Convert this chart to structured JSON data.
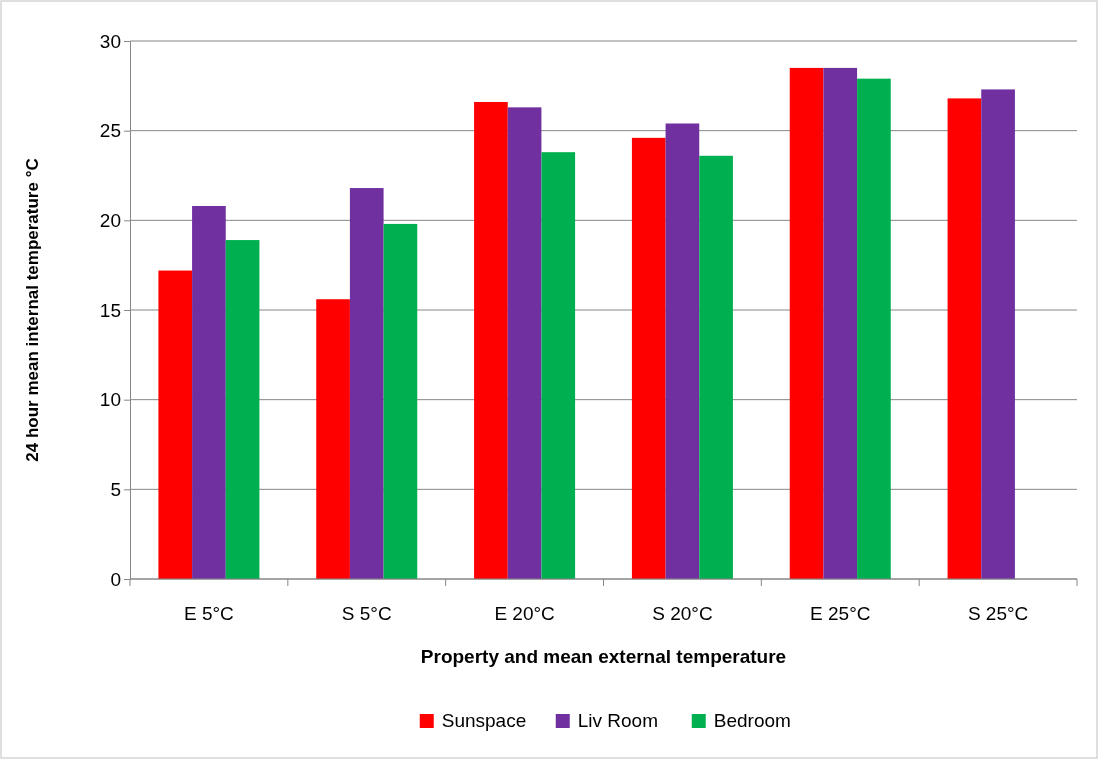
{
  "chart_data": {
    "type": "bar",
    "xlabel": "Property and mean external temperature",
    "ylabel": "24 hour mean internal temperature °C",
    "categories": [
      "E 5°C",
      "S 5°C",
      "E 20°C",
      "S 20°C",
      "E 25°C",
      "S 25°C"
    ],
    "series": [
      {
        "name": "Sunspace",
        "color": "#ff0000",
        "values": [
          17.2,
          15.6,
          26.6,
          24.6,
          28.5,
          26.8
        ]
      },
      {
        "name": "Liv Room",
        "color": "#7030a0",
        "values": [
          20.8,
          21.8,
          26.3,
          25.4,
          28.5,
          27.3
        ]
      },
      {
        "name": "Bedroom",
        "color": "#00b050",
        "values": [
          18.9,
          19.8,
          23.8,
          23.6,
          27.9,
          null
        ]
      }
    ],
    "ylim": [
      0,
      30
    ],
    "yticks": [
      0,
      5,
      10,
      15,
      20,
      25,
      30
    ],
    "grid": "y",
    "legend": "bottom"
  }
}
